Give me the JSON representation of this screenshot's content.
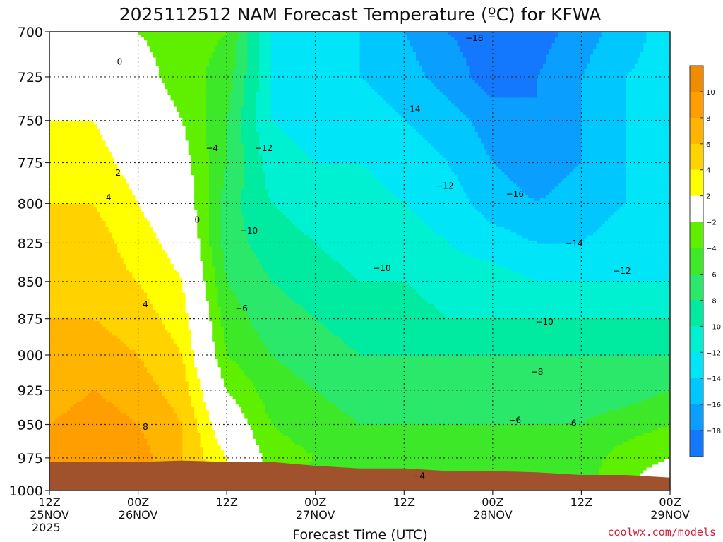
{
  "chart_data": {
    "type": "heatmap",
    "title": "2025112512 NAM Forecast Temperature (ºC) for KFWA",
    "xlabel": "Forecast Time (UTC)",
    "ylabel": "",
    "x_range_hours": [
      0,
      84
    ],
    "y_range_hpa": [
      1000,
      700
    ],
    "y_scale": "log-pressure",
    "y_ticks": [
      {
        "value": 700,
        "label": "700"
      },
      {
        "value": 725,
        "label": "725"
      },
      {
        "value": 750,
        "label": "750"
      },
      {
        "value": 775,
        "label": "775"
      },
      {
        "value": 800,
        "label": "800"
      },
      {
        "value": 825,
        "label": "825"
      },
      {
        "value": 850,
        "label": "850"
      },
      {
        "value": 875,
        "label": "875"
      },
      {
        "value": 900,
        "label": "900"
      },
      {
        "value": 925,
        "label": "925"
      },
      {
        "value": 950,
        "label": "950"
      },
      {
        "value": 975,
        "label": "975"
      },
      {
        "value": 1000,
        "label": "1000"
      }
    ],
    "x_ticks": [
      {
        "hours": 0,
        "label": "12Z",
        "sub": "25NOV",
        "sub2": "2025"
      },
      {
        "hours": 12,
        "label": "00Z",
        "sub": "26NOV",
        "sub2": ""
      },
      {
        "hours": 24,
        "label": "12Z",
        "sub": "",
        "sub2": ""
      },
      {
        "hours": 36,
        "label": "00Z",
        "sub": "27NOV",
        "sub2": ""
      },
      {
        "hours": 48,
        "label": "12Z",
        "sub": "",
        "sub2": ""
      },
      {
        "hours": 60,
        "label": "00Z",
        "sub": "28NOV",
        "sub2": ""
      },
      {
        "hours": 72,
        "label": "12Z",
        "sub": "",
        "sub2": ""
      },
      {
        "hours": 84,
        "label": "00Z",
        "sub": "29NOV",
        "sub2": ""
      }
    ],
    "grid": true,
    "legend": "right colorbar",
    "colorbar": {
      "bins": [
        {
          "lo": 10,
          "hi": 12,
          "color": "#f08c00"
        },
        {
          "lo": 8,
          "hi": 10,
          "color": "#ff9e00"
        },
        {
          "lo": 6,
          "hi": 8,
          "color": "#ffb400"
        },
        {
          "lo": 4,
          "hi": 6,
          "color": "#ffd200"
        },
        {
          "lo": 2,
          "hi": 4,
          "color": "#ffff00"
        },
        {
          "lo": -2,
          "hi": 2,
          "color": "#ffffff"
        },
        {
          "lo": -4,
          "hi": -2,
          "color": "#5ff000"
        },
        {
          "lo": -6,
          "hi": -4,
          "color": "#3ce828"
        },
        {
          "lo": -8,
          "hi": -6,
          "color": "#2be86a"
        },
        {
          "lo": -10,
          "hi": -8,
          "color": "#00eba0"
        },
        {
          "lo": -12,
          "hi": -10,
          "color": "#00f0d2"
        },
        {
          "lo": -14,
          "hi": -12,
          "color": "#00e6f8"
        },
        {
          "lo": -16,
          "hi": -14,
          "color": "#00c8ff"
        },
        {
          "lo": -18,
          "hi": -16,
          "color": "#0a9fff"
        },
        {
          "lo": -20,
          "hi": -18,
          "color": "#1478ff"
        }
      ],
      "labels": [
        "10",
        "8",
        "6",
        "4",
        "2",
        "−2",
        "−4",
        "−6",
        "−8",
        "−10",
        "−12",
        "−14",
        "−16",
        "−18"
      ]
    },
    "surface": {
      "color": "#a0522d",
      "hours": [
        0,
        6,
        12,
        18,
        24,
        30,
        36,
        42,
        48,
        54,
        60,
        66,
        72,
        78,
        84
      ],
      "pressure_hpa": [
        978,
        978,
        978,
        977,
        978,
        978,
        981,
        983,
        983,
        985,
        985,
        986,
        988,
        988,
        990
      ]
    },
    "temperature_grid": {
      "hours": [
        0,
        6,
        12,
        18,
        24,
        30,
        36,
        42,
        48,
        54,
        60,
        66,
        72,
        78,
        84
      ],
      "levels_hpa": [
        1000,
        975,
        950,
        925,
        900,
        875,
        850,
        825,
        800,
        775,
        750,
        725,
        700
      ],
      "values_c": [
        [
          10,
          10,
          9,
          6,
          2,
          -4,
          -5,
          -5,
          -5,
          -5,
          -5,
          -5,
          -5,
          -2,
          0
        ],
        [
          9,
          10,
          9,
          6,
          2,
          -3,
          -4,
          -5,
          -5,
          -5,
          -5,
          -5,
          -5,
          -3,
          -2
        ],
        [
          8,
          9,
          8,
          6,
          0,
          -4,
          -5,
          -6,
          -6,
          -6,
          -6,
          -6,
          -6,
          -5,
          -4
        ],
        [
          7,
          8,
          7,
          5,
          -2,
          -5,
          -6,
          -7,
          -7,
          -7,
          -7,
          -7,
          -7,
          -7,
          -6
        ],
        [
          7,
          7,
          6,
          4,
          -4,
          -6,
          -7,
          -8,
          -8,
          -8,
          -8,
          -8,
          -8,
          -8,
          -8
        ],
        [
          6,
          6,
          5,
          3,
          -5,
          -7,
          -8,
          -9,
          -9,
          -10,
          -10,
          -10,
          -10,
          -10,
          -10
        ],
        [
          6,
          5,
          4,
          2,
          -6,
          -8,
          -9,
          -10,
          -10,
          -11,
          -11,
          -12,
          -12,
          -12,
          -12
        ],
        [
          5,
          5,
          3,
          1,
          -7,
          -9,
          -10,
          -11,
          -11,
          -12,
          -13,
          -14,
          -14,
          -13,
          -12
        ],
        [
          4,
          4,
          2,
          0,
          -7,
          -10,
          -11,
          -11,
          -12,
          -13,
          -15,
          -16,
          -15,
          -14,
          -13
        ],
        [
          3,
          3,
          1,
          -1,
          -6,
          -11,
          -12,
          -12,
          -13,
          -14,
          -16,
          -17,
          -16,
          -14,
          -13
        ],
        [
          2,
          2,
          0,
          -2,
          -6,
          -12,
          -13,
          -13,
          -14,
          -15,
          -17,
          -18,
          -16,
          -14,
          -13
        ],
        [
          0,
          1,
          -1,
          -3,
          -5,
          -12,
          -13,
          -14,
          -15,
          -17,
          -19,
          -18,
          -16,
          -14,
          -13
        ],
        [
          -1,
          0,
          -2,
          -3,
          -4,
          -12,
          -13,
          -14,
          -16,
          -18,
          -19,
          -19,
          -17,
          -15,
          -13
        ]
      ]
    },
    "contour_labels": [
      {
        "hours": 9.5,
        "hpa": 718,
        "text": "0"
      },
      {
        "hours": 9.3,
        "hpa": 783,
        "text": "2"
      },
      {
        "hours": 8.0,
        "hpa": 798,
        "text": "4"
      },
      {
        "hours": 13.0,
        "hpa": 867,
        "text": "4"
      },
      {
        "hours": 13.0,
        "hpa": 954,
        "text": "8"
      },
      {
        "hours": 20.0,
        "hpa": 812,
        "text": "0"
      },
      {
        "hours": 22.0,
        "hpa": 768,
        "text": "−4"
      },
      {
        "hours": 29.0,
        "hpa": 768,
        "text": "−12"
      },
      {
        "hours": 27.0,
        "hpa": 819,
        "text": "−10"
      },
      {
        "hours": 26.0,
        "hpa": 870,
        "text": "−6"
      },
      {
        "hours": 45.0,
        "hpa": 843,
        "text": "−10"
      },
      {
        "hours": 49.0,
        "hpa": 745,
        "text": "−14"
      },
      {
        "hours": 53.5,
        "hpa": 791,
        "text": "−12"
      },
      {
        "hours": 57.5,
        "hpa": 705,
        "text": "−18"
      },
      {
        "hours": 63.0,
        "hpa": 796,
        "text": "−16"
      },
      {
        "hours": 71.0,
        "hpa": 827,
        "text": "−14"
      },
      {
        "hours": 77.5,
        "hpa": 845,
        "text": "−12"
      },
      {
        "hours": 67.0,
        "hpa": 879,
        "text": "−10"
      },
      {
        "hours": 66.0,
        "hpa": 914,
        "text": "−8"
      },
      {
        "hours": 63.0,
        "hpa": 949,
        "text": "−6"
      },
      {
        "hours": 70.5,
        "hpa": 951,
        "text": "−6"
      },
      {
        "hours": 50.0,
        "hpa": 991,
        "text": "−4"
      }
    ]
  },
  "credit": "coolwx.com/models"
}
